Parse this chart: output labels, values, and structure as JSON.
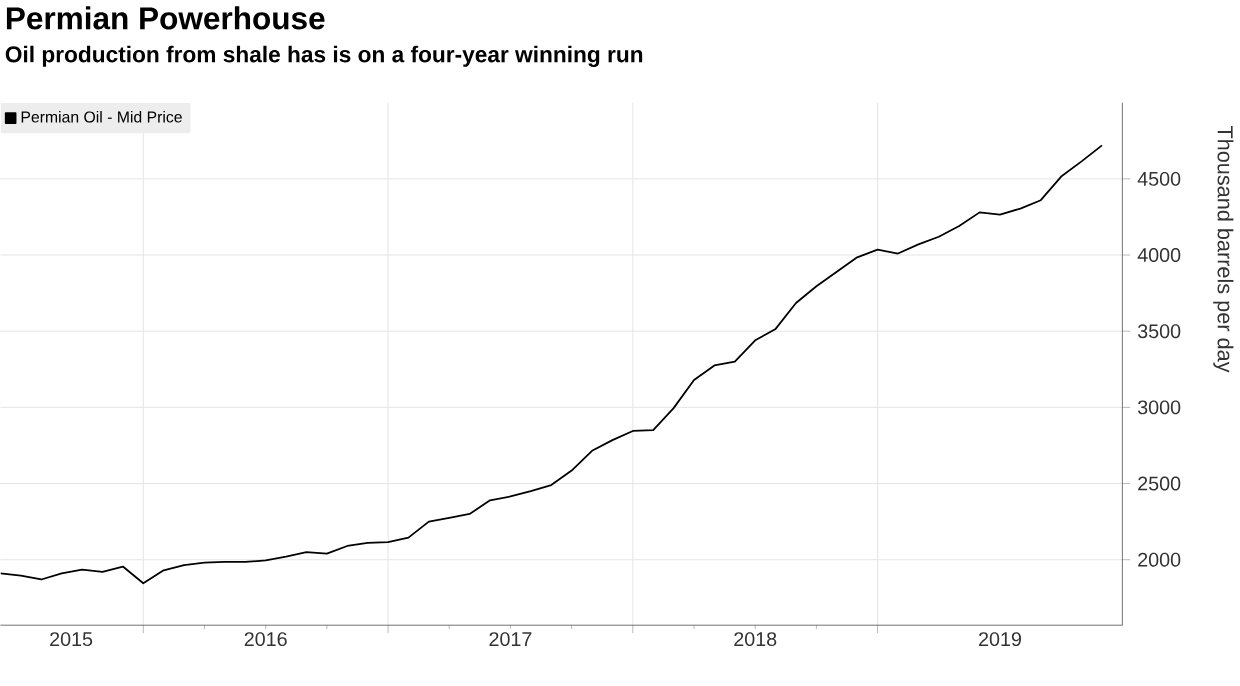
{
  "chart_data": {
    "type": "line",
    "title": "Permian Powerhouse",
    "subtitle": "Oil production from shale has is on a four-year winning run",
    "ylabel": "Thousand barrels per day",
    "x": [
      "2015-06",
      "2015-07",
      "2015-08",
      "2015-09",
      "2015-10",
      "2015-11",
      "2015-12",
      "2016-01",
      "2016-02",
      "2016-03",
      "2016-04",
      "2016-05",
      "2016-06",
      "2016-07",
      "2016-08",
      "2016-09",
      "2016-10",
      "2016-11",
      "2016-12",
      "2017-01",
      "2017-02",
      "2017-03",
      "2017-04",
      "2017-05",
      "2017-06",
      "2017-07",
      "2017-08",
      "2017-09",
      "2017-10",
      "2017-11",
      "2017-12",
      "2018-01",
      "2018-02",
      "2018-03",
      "2018-04",
      "2018-05",
      "2018-06",
      "2018-07",
      "2018-08",
      "2018-09",
      "2018-10",
      "2018-11",
      "2018-12",
      "2019-01",
      "2019-02",
      "2019-03",
      "2019-04",
      "2019-05",
      "2019-06",
      "2019-07",
      "2019-08",
      "2019-09",
      "2019-10",
      "2019-11",
      "2019-12"
    ],
    "series": [
      {
        "name": "Permian Oil - Mid Price",
        "color": "#000000",
        "values": [
          1910,
          1895,
          1870,
          1910,
          1935,
          1920,
          1955,
          1845,
          1930,
          1965,
          1980,
          1985,
          1985,
          1995,
          2020,
          2050,
          2040,
          2090,
          2110,
          2115,
          2145,
          2250,
          2275,
          2300,
          2390,
          2415,
          2450,
          2490,
          2585,
          2715,
          2785,
          2845,
          2850,
          2995,
          3180,
          3275,
          3300,
          3440,
          3515,
          3685,
          3795,
          3890,
          3985,
          4035,
          4010,
          4070,
          4120,
          4190,
          4280,
          4265,
          4305,
          4360,
          4515,
          4615,
          4720
        ]
      }
    ],
    "xlim": [
      "2015-06",
      "2020-01"
    ],
    "xticks": [
      {
        "value": "2016-01",
        "label": null
      },
      {
        "value": "2017-01",
        "label": null
      },
      {
        "value": "2018-01",
        "label": null
      },
      {
        "value": "2019-01",
        "label": null
      },
      {
        "value": "2015-09-15",
        "label": "2015"
      },
      {
        "value": "2016-07",
        "label": "2016"
      },
      {
        "value": "2017-07",
        "label": "2017"
      },
      {
        "value": "2018-07",
        "label": "2018"
      },
      {
        "value": "2019-07",
        "label": "2019"
      }
    ],
    "ylim": [
      1570,
      5000
    ],
    "yticks": [
      2000,
      2500,
      3000,
      3500,
      4000,
      4500
    ],
    "grid": true,
    "legend": "top left",
    "marker": "none",
    "line_style": "solid"
  }
}
